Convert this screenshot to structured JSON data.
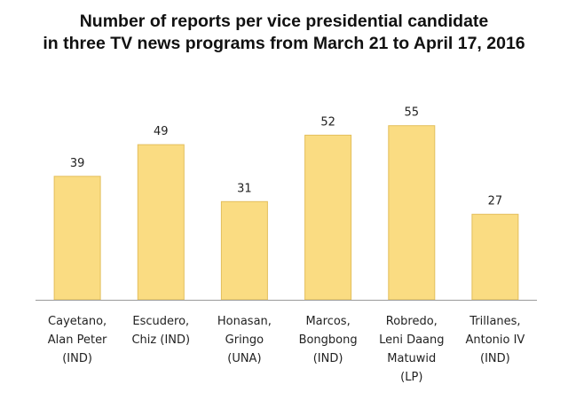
{
  "chart_data": {
    "type": "bar",
    "title_lines": [
      "Number of reports per vice presidential candidate",
      "in three TV news programs from March 21 to April 17, 2016"
    ],
    "categories": [
      [
        "Cayetano,",
        "Alan Peter",
        "(IND)"
      ],
      [
        "Escudero,",
        "Chiz (IND)"
      ],
      [
        "Honasan,",
        "Gringo",
        "(UNA)"
      ],
      [
        "Marcos,",
        "Bongbong",
        "(IND)"
      ],
      [
        "Robredo,",
        "Leni Daang",
        "Matuwid",
        "(LP)"
      ],
      [
        "Trillanes,",
        "Antonio IV",
        "(IND)"
      ]
    ],
    "values": [
      39,
      49,
      31,
      52,
      55,
      27
    ],
    "xlabel": "",
    "ylabel": "",
    "ylim": [
      0,
      60
    ],
    "grid": false,
    "legend": "none",
    "colors": {
      "bar_fill": "#fadc82",
      "bar_stroke": "#e3bf5c",
      "baseline": "#9a9a9a"
    }
  }
}
